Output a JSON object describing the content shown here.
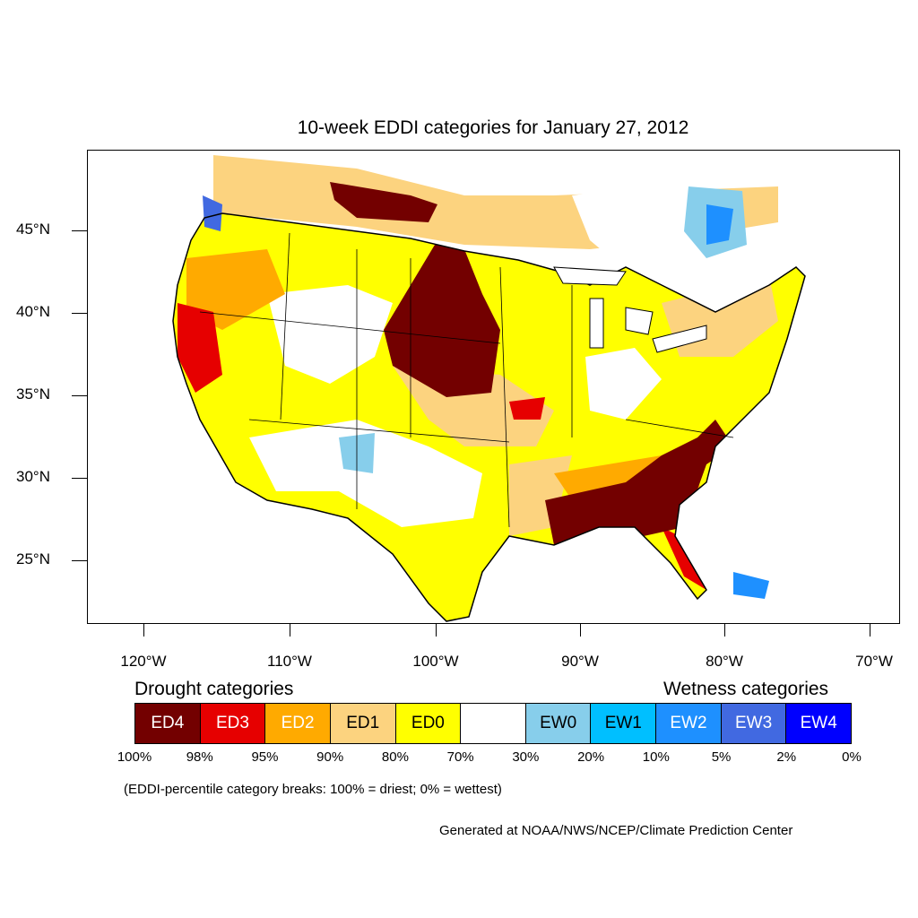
{
  "title": "10-week EDDI categories for January 27, 2012",
  "lat_labels": [
    "45°N",
    "40°N",
    "35°N",
    "30°N",
    "25°N"
  ],
  "lon_labels": [
    "120°W",
    "110°W",
    "100°W",
    "90°W",
    "80°W",
    "70°W"
  ],
  "legend": {
    "drought_heading": "Drought categories",
    "wetness_heading": "Wetness categories",
    "categories": [
      {
        "label": "ED4",
        "color": "#730000",
        "text_color": "#ffffff"
      },
      {
        "label": "ED3",
        "color": "#e60000",
        "text_color": "#ffffff"
      },
      {
        "label": "ED2",
        "color": "#ffaa00",
        "text_color": "#ffffff"
      },
      {
        "label": "ED1",
        "color": "#fcd37f",
        "text_color": "#000000"
      },
      {
        "label": "ED0",
        "color": "#ffff00",
        "text_color": "#000000"
      },
      {
        "label": "",
        "color": "#ffffff",
        "text_color": "#000000"
      },
      {
        "label": "EW0",
        "color": "#87ceeb",
        "text_color": "#000000"
      },
      {
        "label": "EW1",
        "color": "#00bfff",
        "text_color": "#000000"
      },
      {
        "label": "EW2",
        "color": "#1e90ff",
        "text_color": "#ffffff"
      },
      {
        "label": "EW3",
        "color": "#4169e1",
        "text_color": "#ffffff"
      },
      {
        "label": "EW4",
        "color": "#0000ff",
        "text_color": "#ffffff"
      }
    ],
    "breaks": [
      "100%",
      "98%",
      "95%",
      "90%",
      "80%",
      "70%",
      "30%",
      "20%",
      "10%",
      "5%",
      "2%",
      "0%"
    ]
  },
  "note": "(EDDI-percentile category breaks: 100% = driest; 0% = wettest)",
  "credit": "Generated at NOAA/NWS/NCEP/Climate Prediction Center"
}
